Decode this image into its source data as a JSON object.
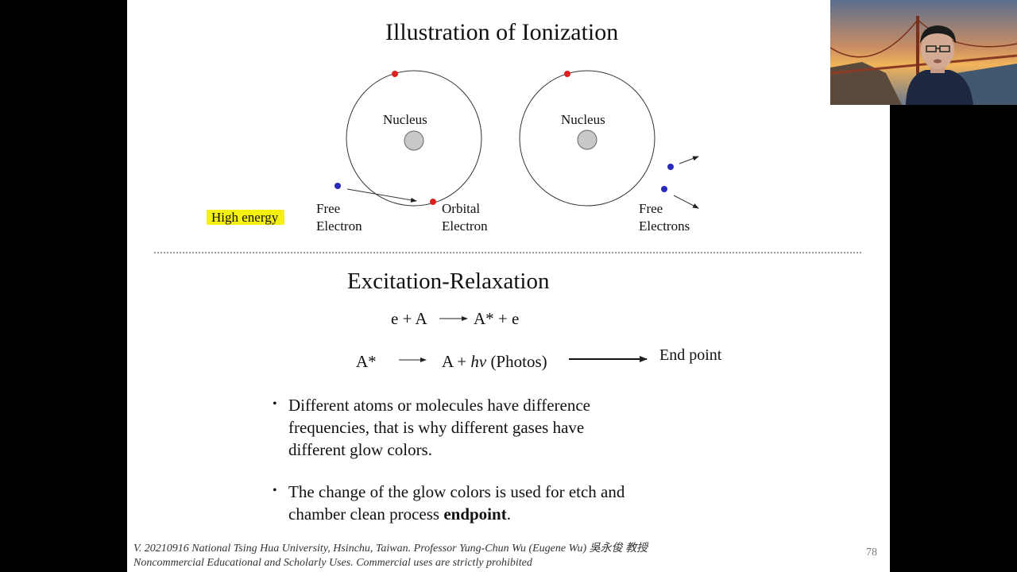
{
  "slide": {
    "title": "Illustration of Ionization",
    "diagram": {
      "nucleus_label_1": "Nucleus",
      "nucleus_label_2": "Nucleus",
      "high_energy": "High energy",
      "free_electron": [
        "Free",
        "Electron"
      ],
      "orbital_electron": [
        "Orbital",
        "Electron"
      ],
      "free_electrons": [
        "Free",
        "Electrons"
      ]
    },
    "section_title": "Excitation-Relaxation",
    "equation1": {
      "left": "e + A",
      "right": "A* + e"
    },
    "equation2": {
      "left": "A*",
      "right_prefix": "A + ",
      "h": "h",
      "nu": "ν",
      "right_suffix": " (Photos)",
      "end_label": "End point"
    },
    "bullets": [
      {
        "text": "Different atoms or molecules have difference frequencies, that is why different gases have different glow colors."
      },
      {
        "text_before": "The change of the glow colors is used for etch and chamber clean process ",
        "bold": "endpoint",
        "text_after": "."
      }
    ],
    "footer_line1": "V. 20210916 National Tsing Hua University, Hsinchu, Taiwan. Professor Yung-Chun Wu (Eugene Wu) 吳永俊 教授",
    "footer_line2": "Noncommercial Educational and Scholarly Uses. Commercial uses are strictly prohibited",
    "page_number": "78"
  },
  "colors": {
    "electron_red": "#e02020",
    "electron_blue": "#2a2ab8",
    "highlight": "#f4f012",
    "nucleus_gray": "#c8c8c8"
  },
  "icons": {
    "webcam": "presenter-video-feed"
  }
}
